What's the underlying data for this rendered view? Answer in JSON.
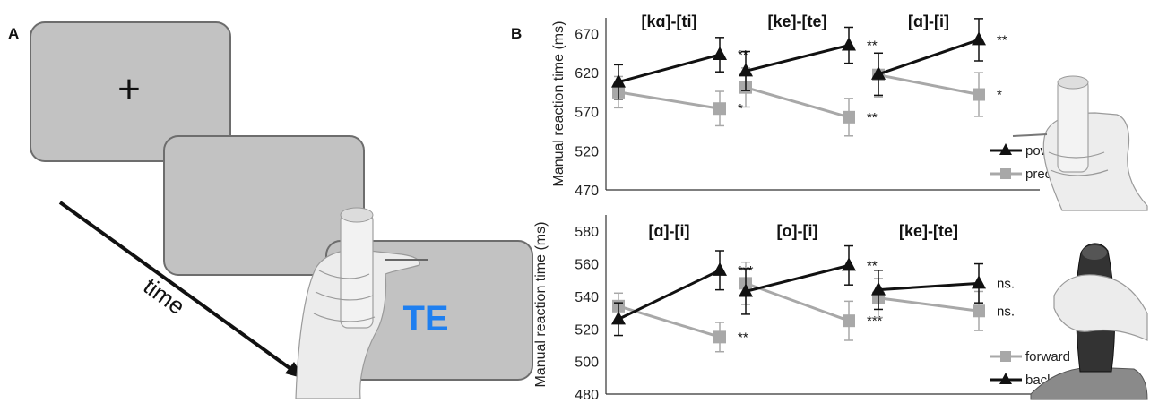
{
  "panel_a": {
    "label": "A",
    "fixation": "+",
    "stimulus": "TE",
    "time_label": "time",
    "colors": {
      "screen": "#c2c2c2",
      "stimulus": "#1e7ff0"
    },
    "icons": [
      "power-grip-hand-icon"
    ]
  },
  "chart_data": [
    {
      "type": "line",
      "panel_label": "B",
      "ylabel": "Manual reaction time (ms)",
      "ylim": [
        470,
        690
      ],
      "yticks": [
        470,
        520,
        570,
        620,
        670
      ],
      "grid": false,
      "legend": {
        "placement": "bottom-right",
        "entries": [
          "power",
          "precision"
        ]
      },
      "icon": "power-grip-hand-icon",
      "series_style": {
        "power": {
          "color": "#111111",
          "marker": "triangle"
        },
        "precision": {
          "color": "#a8a8a8",
          "marker": "square"
        }
      },
      "groups": [
        {
          "title": "[kɑ]-[ti]",
          "x": [
            "[kɑ]",
            "[ti]"
          ],
          "series": [
            {
              "name": "power",
              "values": [
                608,
                643
              ],
              "errors": [
                22,
                22
              ]
            },
            {
              "name": "precision",
              "values": [
                595,
                574
              ],
              "errors": [
                20,
                22
              ]
            }
          ],
          "significance": [
            "**",
            "*"
          ]
        },
        {
          "title": "[ke]-[te]",
          "x": [
            "[ke]",
            "[te]"
          ],
          "series": [
            {
              "name": "power",
              "values": [
                622,
                655
              ],
              "errors": [
                25,
                23
              ]
            },
            {
              "name": "precision",
              "values": [
                601,
                563
              ],
              "errors": [
                25,
                24
              ]
            }
          ],
          "significance": [
            "**",
            "**"
          ]
        },
        {
          "title": "[ɑ]-[i]",
          "x": [
            "[ɑ]",
            "[i]"
          ],
          "series": [
            {
              "name": "power",
              "values": [
                618,
                662
              ],
              "errors": [
                27,
                27
              ]
            },
            {
              "name": "precision",
              "values": [
                617,
                592
              ],
              "errors": [
                28,
                28
              ]
            }
          ],
          "significance": [
            "**",
            "*"
          ]
        }
      ]
    },
    {
      "type": "line",
      "ylabel": "Manual reaction time (ms)",
      "ylim": [
        480,
        590
      ],
      "yticks": [
        480,
        500,
        520,
        540,
        560,
        580
      ],
      "grid": false,
      "legend": {
        "placement": "bottom-right",
        "entries": [
          "forward",
          "backward"
        ]
      },
      "icon": "joystick-hand-icon",
      "series_style": {
        "forward": {
          "color": "#a8a8a8",
          "marker": "square"
        },
        "backward": {
          "color": "#111111",
          "marker": "triangle"
        }
      },
      "groups": [
        {
          "title": "[ɑ]-[i]",
          "x": [
            "[ɑ]",
            "[i]"
          ],
          "series": [
            {
              "name": "backward",
              "values": [
                526,
                556
              ],
              "errors": [
                10,
                12
              ]
            },
            {
              "name": "forward",
              "values": [
                534,
                515
              ],
              "errors": [
                8,
                9
              ]
            }
          ],
          "significance": [
            "***",
            "**"
          ]
        },
        {
          "title": "[o]-[i]",
          "x": [
            "[o]",
            "[i]"
          ],
          "series": [
            {
              "name": "backward",
              "values": [
                543,
                559
              ],
              "errors": [
                14,
                12
              ]
            },
            {
              "name": "forward",
              "values": [
                548,
                525
              ],
              "errors": [
                13,
                12
              ]
            }
          ],
          "significance": [
            "**",
            "***"
          ]
        },
        {
          "title": "[ke]-[te]",
          "x": [
            "[ke]",
            "[te]"
          ],
          "series": [
            {
              "name": "backward",
              "values": [
                544,
                548
              ],
              "errors": [
                12,
                12
              ]
            },
            {
              "name": "forward",
              "values": [
                539,
                531
              ],
              "errors": [
                12,
                12
              ]
            }
          ],
          "significance": [
            "ns.",
            "ns."
          ]
        }
      ]
    }
  ]
}
